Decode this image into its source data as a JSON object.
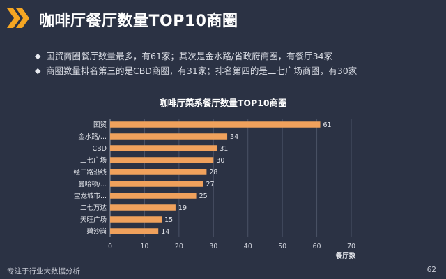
{
  "header": {
    "title": "咖啡厅餐厅数量TOP10商圈",
    "accent": "#f5a623"
  },
  "bullets": [
    "国贸商圈餐厅数量最多，有61家；其次是金水路/省政府商圈，有餐厅34家",
    "商圈数量排名第三的是CBD商圈，有31家；排名第四的是二七广场商圈，有30家"
  ],
  "footer": {
    "left": "专注于行业大数据分析",
    "page": "62"
  },
  "chart_data": {
    "type": "bar",
    "orientation": "horizontal",
    "title": "咖啡厅菜系餐厅数量TOP10商圈",
    "categories": [
      "国贸",
      "金水路/...",
      "CBD",
      "二七广场",
      "经三路沿线",
      "曼哈顿/...",
      "宝龙城市...",
      "二七万达",
      "天旺广场",
      "碧沙岗"
    ],
    "values": [
      61,
      34,
      31,
      30,
      28,
      27,
      25,
      19,
      15,
      14
    ],
    "xlabel": "餐厅数",
    "ylabel": "",
    "xlim": [
      0,
      70
    ],
    "xticks": [
      0,
      10,
      20,
      30,
      40,
      50,
      60,
      70
    ],
    "grid": true,
    "bar_color": "#f0a15c",
    "show_data_labels": true
  }
}
